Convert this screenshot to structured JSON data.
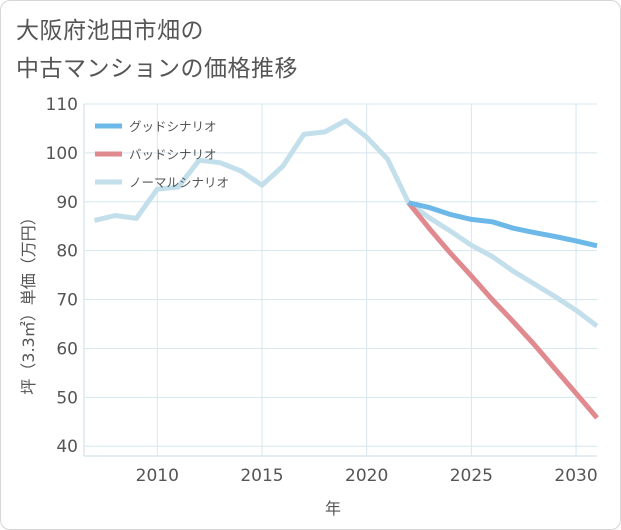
{
  "header": {
    "title_line1": "大阪府池田市畑の",
    "title_line2": "中古マンションの価格推移"
  },
  "chart_data": {
    "type": "line",
    "xlabel": "年",
    "ylabel": "坪（3.3㎡）単価（万円）",
    "xlim": [
      2006.5,
      2031
    ],
    "ylim": [
      38,
      110
    ],
    "x_ticks": [
      2010,
      2015,
      2020,
      2025,
      2030
    ],
    "y_ticks": [
      40,
      50,
      60,
      70,
      80,
      90,
      100,
      110
    ],
    "grid": true,
    "legend_position": "top-left",
    "series": [
      {
        "name": "グッドシナリオ",
        "color": "#6cb8e8",
        "x": [
          2022,
          2023,
          2024,
          2025,
          2026,
          2027,
          2028,
          2029,
          2030,
          2031
        ],
        "values": [
          89.8,
          88.8,
          87.4,
          86.4,
          85.9,
          84.6,
          83.7,
          82.9,
          82.0,
          81.0
        ]
      },
      {
        "name": "バッドシナリオ",
        "color": "#e08a8f",
        "x": [
          2022,
          2023,
          2024,
          2025,
          2026,
          2027,
          2028,
          2029,
          2030,
          2031
        ],
        "values": [
          89.8,
          84.5,
          79.5,
          74.8,
          70.0,
          65.5,
          60.8,
          55.8,
          50.8,
          45.8
        ]
      },
      {
        "name": "ノーマルシナリオ",
        "color": "#c2dfeb",
        "x": [
          2007,
          2008,
          2009,
          2010,
          2011,
          2012,
          2013,
          2014,
          2015,
          2016,
          2017,
          2018,
          2019,
          2020,
          2021,
          2022,
          2023,
          2024,
          2025,
          2026,
          2027,
          2028,
          2029,
          2030,
          2031
        ],
        "values": [
          86.2,
          87.2,
          86.6,
          92.6,
          93.0,
          98.5,
          98.0,
          96.3,
          93.4,
          97.3,
          103.8,
          104.3,
          106.6,
          103.2,
          98.7,
          89.8,
          86.7,
          84.0,
          81.1,
          78.8,
          75.8,
          73.2,
          70.6,
          67.8,
          64.6
        ]
      }
    ]
  }
}
